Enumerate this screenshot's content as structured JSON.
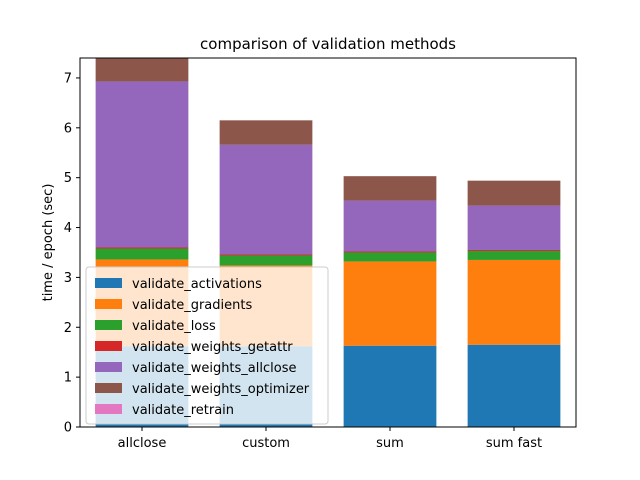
{
  "chart_data": {
    "type": "bar",
    "stacked": true,
    "title": "comparison of validation methods",
    "xlabel": "",
    "ylabel": "time / epoch (sec)",
    "ylim": [
      0,
      7.4
    ],
    "yticks": [
      0,
      1,
      2,
      3,
      4,
      5,
      6,
      7
    ],
    "grid": false,
    "legend_position": "lower-left",
    "categories": [
      "allclose",
      "custom",
      "sum",
      "sum fast"
    ],
    "series": [
      {
        "name": "validate_activations",
        "color": "#1f77b4",
        "values": [
          1.62,
          1.62,
          1.63,
          1.65
        ]
      },
      {
        "name": "validate_gradients",
        "color": "#ff7f0e",
        "values": [
          1.74,
          1.62,
          1.69,
          1.7
        ]
      },
      {
        "name": "validate_loss",
        "color": "#2ca02c",
        "values": [
          0.22,
          0.2,
          0.18,
          0.18
        ]
      },
      {
        "name": "validate_weights_getattr",
        "color": "#d62728",
        "values": [
          0.02,
          0.02,
          0.02,
          0.02
        ]
      },
      {
        "name": "validate_weights_allclose",
        "color": "#9467bd",
        "values": [
          3.33,
          2.2,
          1.02,
          0.89
        ]
      },
      {
        "name": "validate_weights_optimizer",
        "color": "#8c564b",
        "values": [
          0.47,
          0.49,
          0.49,
          0.5
        ]
      },
      {
        "name": "validate_retrain",
        "color": "#e377c2",
        "values": [
          0.0,
          0.0,
          0.0,
          0.0
        ]
      }
    ]
  }
}
